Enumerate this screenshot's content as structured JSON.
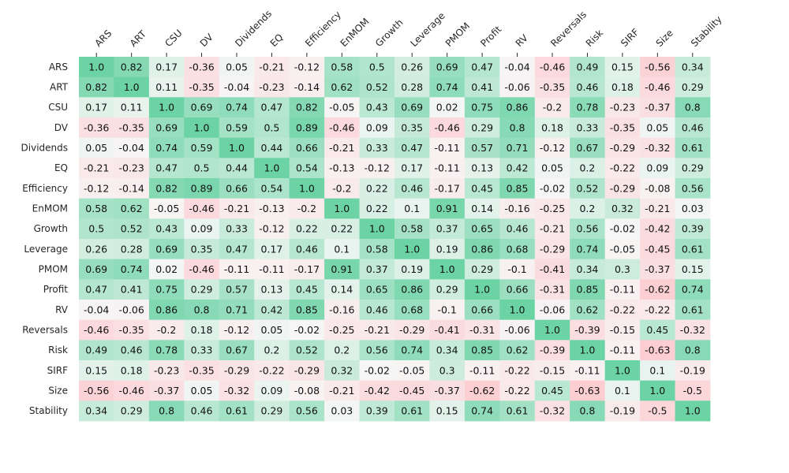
{
  "chart_data": {
    "type": "heatmap",
    "title": "",
    "xlabel": "",
    "ylabel": "",
    "labels": [
      "ARS",
      "ART",
      "CSU",
      "DV",
      "Dividends",
      "EQ",
      "Efficiency",
      "EnMOM",
      "Growth",
      "Leverage",
      "PMOM",
      "Profit",
      "RV",
      "Reversals",
      "Risk",
      "SIRF",
      "Size",
      "Stability"
    ],
    "values": [
      [
        1.0,
        0.82,
        0.17,
        -0.36,
        0.05,
        -0.21,
        -0.12,
        0.58,
        0.5,
        0.26,
        0.69,
        0.47,
        -0.04,
        -0.46,
        0.49,
        0.15,
        -0.56,
        0.34
      ],
      [
        0.82,
        1.0,
        0.11,
        -0.35,
        -0.04,
        -0.23,
        -0.14,
        0.62,
        0.52,
        0.28,
        0.74,
        0.41,
        -0.06,
        -0.35,
        0.46,
        0.18,
        -0.46,
        0.29
      ],
      [
        0.17,
        0.11,
        1.0,
        0.69,
        0.74,
        0.47,
        0.82,
        -0.05,
        0.43,
        0.69,
        0.02,
        0.75,
        0.86,
        -0.2,
        0.78,
        -0.23,
        -0.37,
        0.8
      ],
      [
        -0.36,
        -0.35,
        0.69,
        1.0,
        0.59,
        0.5,
        0.89,
        -0.46,
        0.09,
        0.35,
        -0.46,
        0.29,
        0.8,
        0.18,
        0.33,
        -0.35,
        0.05,
        0.46
      ],
      [
        0.05,
        -0.04,
        0.74,
        0.59,
        1.0,
        0.44,
        0.66,
        -0.21,
        0.33,
        0.47,
        -0.11,
        0.57,
        0.71,
        -0.12,
        0.67,
        -0.29,
        -0.32,
        0.61
      ],
      [
        -0.21,
        -0.23,
        0.47,
        0.5,
        0.44,
        1.0,
        0.54,
        -0.13,
        -0.12,
        0.17,
        -0.11,
        0.13,
        0.42,
        0.05,
        0.2,
        -0.22,
        0.09,
        0.29
      ],
      [
        -0.12,
        -0.14,
        0.82,
        0.89,
        0.66,
        0.54,
        1.0,
        -0.2,
        0.22,
        0.46,
        -0.17,
        0.45,
        0.85,
        -0.02,
        0.52,
        -0.29,
        -0.08,
        0.56
      ],
      [
        0.58,
        0.62,
        -0.05,
        -0.46,
        -0.21,
        -0.13,
        -0.2,
        1.0,
        0.22,
        0.1,
        0.91,
        0.14,
        -0.16,
        -0.25,
        0.2,
        0.32,
        -0.21,
        0.03
      ],
      [
        0.5,
        0.52,
        0.43,
        0.09,
        0.33,
        -0.12,
        0.22,
        0.22,
        1.0,
        0.58,
        0.37,
        0.65,
        0.46,
        -0.21,
        0.56,
        -0.02,
        -0.42,
        0.39
      ],
      [
        0.26,
        0.28,
        0.69,
        0.35,
        0.47,
        0.17,
        0.46,
        0.1,
        0.58,
        1.0,
        0.19,
        0.86,
        0.68,
        -0.29,
        0.74,
        -0.05,
        -0.45,
        0.61
      ],
      [
        0.69,
        0.74,
        0.02,
        -0.46,
        -0.11,
        -0.11,
        -0.17,
        0.91,
        0.37,
        0.19,
        1.0,
        0.29,
        -0.1,
        -0.41,
        0.34,
        0.3,
        -0.37,
        0.15
      ],
      [
        0.47,
        0.41,
        0.75,
        0.29,
        0.57,
        0.13,
        0.45,
        0.14,
        0.65,
        0.86,
        0.29,
        1.0,
        0.66,
        -0.31,
        0.85,
        -0.11,
        -0.62,
        0.74
      ],
      [
        -0.04,
        -0.06,
        0.86,
        0.8,
        0.71,
        0.42,
        0.85,
        -0.16,
        0.46,
        0.68,
        -0.1,
        0.66,
        1.0,
        -0.06,
        0.62,
        -0.22,
        -0.22,
        0.61
      ],
      [
        -0.46,
        -0.35,
        -0.2,
        0.18,
        -0.12,
        0.05,
        -0.02,
        -0.25,
        -0.21,
        -0.29,
        -0.41,
        -0.31,
        -0.06,
        1.0,
        -0.39,
        -0.15,
        0.45,
        -0.32
      ],
      [
        0.49,
        0.46,
        0.78,
        0.33,
        0.67,
        0.2,
        0.52,
        0.2,
        0.56,
        0.74,
        0.34,
        0.85,
        0.62,
        -0.39,
        1.0,
        -0.11,
        -0.63,
        0.8
      ],
      [
        0.15,
        0.18,
        -0.23,
        -0.35,
        -0.29,
        -0.22,
        -0.29,
        0.32,
        -0.02,
        -0.05,
        0.3,
        -0.11,
        -0.22,
        -0.15,
        -0.11,
        1.0,
        0.1,
        -0.19
      ],
      [
        -0.56,
        -0.46,
        -0.37,
        0.05,
        -0.32,
        0.09,
        -0.08,
        -0.21,
        -0.42,
        -0.45,
        -0.37,
        -0.62,
        -0.22,
        0.45,
        -0.63,
        0.1,
        1.0,
        -0.5
      ],
      [
        0.34,
        0.29,
        0.8,
        0.46,
        0.61,
        0.29,
        0.56,
        0.03,
        0.39,
        0.61,
        0.15,
        0.74,
        0.61,
        -0.32,
        0.8,
        -0.19,
        -0.5,
        1.0
      ]
    ],
    "color_scale": {
      "negative": "#ffb6bd",
      "neutral": "#f7f7f7",
      "positive": "#6bd3a4",
      "vmin": -1,
      "vmax": 1
    },
    "x_ticks_position": "top",
    "grid": false,
    "legend": "none"
  }
}
